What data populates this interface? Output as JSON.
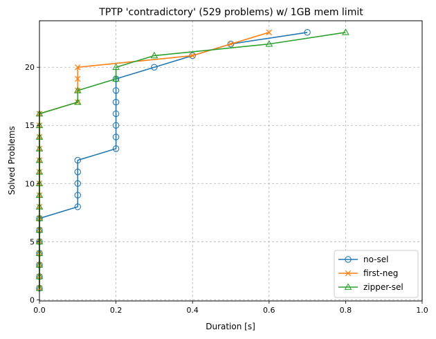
{
  "chart_data": {
    "type": "line",
    "title": "TPTP 'contradictory' (529 problems) w/ 1GB mem limit",
    "xlabel": "Duration [s]",
    "ylabel": "Solved Problems",
    "xlim": [
      0.0,
      1.0
    ],
    "ylim": [
      -0.1,
      24.0
    ],
    "xticks": [
      "0.0",
      "0.2",
      "0.4",
      "0.6",
      "0.8",
      "1.0"
    ],
    "yticks": [
      "0",
      "5",
      "10",
      "15",
      "20"
    ],
    "grid": true,
    "legend_position": "bottom-right",
    "series": [
      {
        "name": "no-sel",
        "color": "#1f77b4",
        "marker": "circle",
        "points": [
          [
            0.0,
            1
          ],
          [
            0.0,
            2
          ],
          [
            0.0,
            3
          ],
          [
            0.0,
            4
          ],
          [
            0.0,
            5
          ],
          [
            0.0,
            6
          ],
          [
            0.0,
            7
          ],
          [
            0.1,
            8
          ],
          [
            0.1,
            9
          ],
          [
            0.1,
            10
          ],
          [
            0.1,
            11
          ],
          [
            0.1,
            12
          ],
          [
            0.2,
            13
          ],
          [
            0.2,
            14
          ],
          [
            0.2,
            15
          ],
          [
            0.2,
            16
          ],
          [
            0.2,
            17
          ],
          [
            0.2,
            18
          ],
          [
            0.2,
            19
          ],
          [
            0.3,
            20
          ],
          [
            0.4,
            21
          ],
          [
            0.5,
            22
          ],
          [
            0.7,
            23
          ]
        ]
      },
      {
        "name": "first-neg",
        "color": "#ff7f0e",
        "marker": "x",
        "points": [
          [
            0.0,
            1
          ],
          [
            0.0,
            2
          ],
          [
            0.0,
            3
          ],
          [
            0.0,
            4
          ],
          [
            0.0,
            5
          ],
          [
            0.0,
            6
          ],
          [
            0.0,
            7
          ],
          [
            0.0,
            8
          ],
          [
            0.0,
            9
          ],
          [
            0.0,
            10
          ],
          [
            0.0,
            11
          ],
          [
            0.0,
            12
          ],
          [
            0.0,
            13
          ],
          [
            0.0,
            14
          ],
          [
            0.0,
            15
          ],
          [
            0.0,
            16
          ],
          [
            0.1,
            17
          ],
          [
            0.1,
            18
          ],
          [
            0.1,
            19
          ],
          [
            0.1,
            20
          ],
          [
            0.4,
            21
          ],
          [
            0.5,
            22
          ],
          [
            0.6,
            23
          ]
        ]
      },
      {
        "name": "zipper-sel",
        "color": "#2ca02c",
        "marker": "triangle",
        "points": [
          [
            0.0,
            1
          ],
          [
            0.0,
            2
          ],
          [
            0.0,
            3
          ],
          [
            0.0,
            4
          ],
          [
            0.0,
            5
          ],
          [
            0.0,
            6
          ],
          [
            0.0,
            7
          ],
          [
            0.0,
            8
          ],
          [
            0.0,
            9
          ],
          [
            0.0,
            10
          ],
          [
            0.0,
            11
          ],
          [
            0.0,
            12
          ],
          [
            0.0,
            13
          ],
          [
            0.0,
            14
          ],
          [
            0.0,
            15
          ],
          [
            0.0,
            16
          ],
          [
            0.1,
            17
          ],
          [
            0.1,
            18
          ],
          [
            0.2,
            19
          ],
          [
            0.2,
            20
          ],
          [
            0.3,
            21
          ],
          [
            0.6,
            22
          ],
          [
            0.8,
            23
          ]
        ]
      }
    ]
  }
}
